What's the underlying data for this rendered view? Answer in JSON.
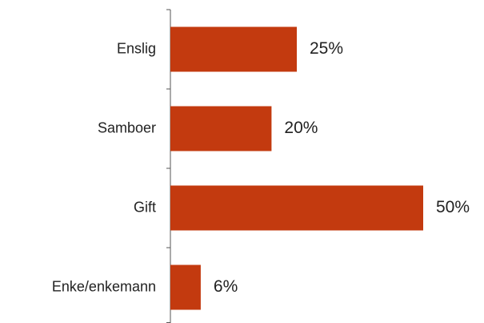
{
  "chart_data": {
    "type": "bar",
    "orientation": "horizontal",
    "categories": [
      "Enslig",
      "Samboer",
      "Gift",
      "Enke/enkemann"
    ],
    "values": [
      25,
      20,
      50,
      6
    ],
    "value_labels": [
      "25%",
      "20%",
      "50%",
      "6%"
    ],
    "color": "#c33a0f"
  }
}
